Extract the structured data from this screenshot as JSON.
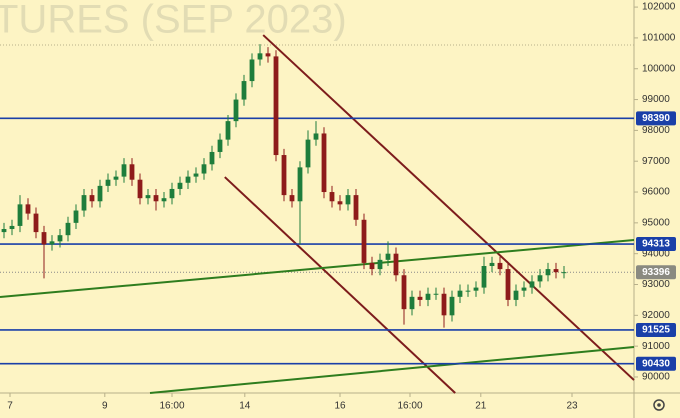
{
  "chart_data": {
    "type": "candlestick",
    "watermark": "TURES (SEP 2023)",
    "xlim": [
      -0.5,
      78.75
    ],
    "xticks": [
      {
        "value": 0.75,
        "label": "7"
      },
      {
        "value": 12.6,
        "label": "9"
      },
      {
        "value": 21,
        "label": "16:00"
      },
      {
        "value": 30.1,
        "label": "14"
      },
      {
        "value": 42,
        "label": "16"
      },
      {
        "value": 50.75,
        "label": "16:00"
      },
      {
        "value": 59.6,
        "label": "21"
      },
      {
        "value": 71,
        "label": "23"
      }
    ],
    "ylim": [
      89480,
      102230
    ],
    "yticks": [
      90000,
      91000,
      92000,
      93000,
      94000,
      95000,
      96000,
      97000,
      98000,
      99000,
      100000,
      101000,
      102000
    ],
    "up_color": "#1e7d3c",
    "down_color": "#8e1b1b",
    "open": [
      94700,
      94800,
      94900,
      95600,
      95300,
      94700,
      94300,
      94400,
      94600,
      95000,
      95400,
      95900,
      95700,
      96200,
      96400,
      96500,
      96900,
      96400,
      95800,
      95900,
      95700,
      95800,
      96100,
      96300,
      96500,
      96600,
      96900,
      97300,
      97700,
      98300,
      99000,
      99600,
      100300,
      100500,
      100400,
      97200,
      95900,
      95700,
      96800,
      97700,
      97900,
      96000,
      95700,
      95600,
      95900,
      95100,
      93700,
      93500,
      93800,
      94000,
      93300,
      92200,
      92600,
      92500,
      92700,
      92700,
      92000,
      92600,
      92800,
      92800,
      92900,
      93600,
      93700,
      93500,
      92500,
      92800,
      92900,
      93100,
      93300,
      93500,
      93400
    ],
    "high": [
      95000,
      95100,
      95900,
      95800,
      95500,
      94900,
      94600,
      94800,
      95200,
      95600,
      96100,
      96100,
      96400,
      96600,
      96700,
      97100,
      97100,
      96600,
      96100,
      96100,
      96000,
      96300,
      96500,
      96700,
      96800,
      97100,
      97500,
      97900,
      98500,
      99200,
      99800,
      100500,
      100800,
      100700,
      100600,
      97400,
      96100,
      97000,
      98000,
      98300,
      98100,
      96200,
      95900,
      96100,
      96100,
      95300,
      93900,
      94000,
      94400,
      94200,
      93500,
      92800,
      92800,
      92900,
      92900,
      92900,
      92800,
      93000,
      93000,
      93100,
      93900,
      93900,
      93900,
      93700,
      93000,
      93100,
      93300,
      93500,
      93700,
      93700,
      93600
    ],
    "low": [
      94500,
      94600,
      94700,
      95100,
      94500,
      93200,
      94100,
      94200,
      94400,
      94800,
      95200,
      95500,
      95500,
      96000,
      96200,
      96300,
      96200,
      95600,
      95600,
      95400,
      95500,
      95600,
      95900,
      96100,
      96300,
      96400,
      96700,
      97100,
      97500,
      98100,
      98800,
      99400,
      100100,
      100200,
      97000,
      95700,
      95500,
      94300,
      96600,
      97500,
      95800,
      95500,
      95400,
      95400,
      94900,
      93500,
      93300,
      93300,
      93600,
      93100,
      91700,
      92000,
      92300,
      92300,
      92500,
      91600,
      91800,
      92400,
      92600,
      92600,
      92700,
      93400,
      93300,
      92300,
      92300,
      92600,
      92700,
      92900,
      93100,
      93200,
      93200
    ],
    "close": [
      94800,
      94900,
      95600,
      95300,
      94700,
      94300,
      94400,
      94600,
      95000,
      95400,
      95900,
      95700,
      96200,
      96400,
      96500,
      96900,
      96400,
      95800,
      95900,
      95700,
      95800,
      96100,
      96300,
      96500,
      96600,
      96900,
      97300,
      97700,
      98300,
      99000,
      99600,
      100300,
      100500,
      100400,
      97200,
      95900,
      95700,
      96800,
      97700,
      97900,
      96000,
      95700,
      95600,
      95900,
      95100,
      93700,
      93500,
      93800,
      94000,
      93300,
      92200,
      92600,
      92500,
      92700,
      92700,
      92000,
      92600,
      92800,
      92800,
      92900,
      93600,
      93700,
      93500,
      92500,
      92800,
      92900,
      93100,
      93300,
      93500,
      93400,
      93400
    ],
    "levels": [
      98390,
      94313,
      91525,
      90430
    ],
    "level_color": "#1a3fa8",
    "last_price": 93396,
    "ref_line": 100770,
    "trend_lines": [
      {
        "color": "#7d1c1c",
        "x": [
          32.4,
          78.75
        ],
        "y": [
          101092,
          89900
        ]
      },
      {
        "color": "#7d1c1c",
        "x": [
          27.6,
          56.4
        ],
        "y": [
          96486,
          89480
        ]
      },
      {
        "color": "#2e7d1e",
        "x": [
          -0.5,
          78.75
        ],
        "y": [
          92594,
          94443
        ]
      },
      {
        "color": "#2e7d1e",
        "x": [
          18.25,
          78.75
        ],
        "y": [
          89480,
          90972
        ]
      }
    ]
  }
}
